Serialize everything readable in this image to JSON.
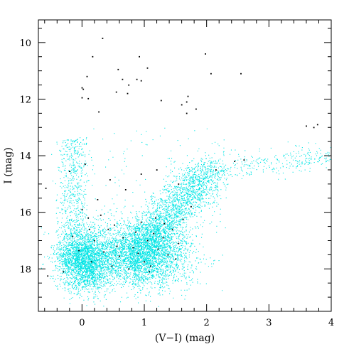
{
  "chart_data": {
    "type": "scatter",
    "xlabel": "(V−I) (mag)",
    "ylabel": "I (mag)",
    "xlim": [
      -0.7,
      4.0
    ],
    "ylim": [
      19.5,
      9.2
    ],
    "y_inverted": true,
    "grid": false,
    "xticks": [
      {
        "value": 0,
        "label": "0"
      },
      {
        "value": 1,
        "label": "1"
      },
      {
        "value": 2,
        "label": "2"
      },
      {
        "value": 3,
        "label": "3"
      },
      {
        "value": 4,
        "label": "4"
      }
    ],
    "yticks": [
      {
        "value": 10,
        "label": "10"
      },
      {
        "value": 12,
        "label": "12"
      },
      {
        "value": 14,
        "label": "14"
      },
      {
        "value": 16,
        "label": "16"
      },
      {
        "value": 18,
        "label": "18"
      }
    ],
    "series": [
      {
        "color": "#00e5e5",
        "approx_point_count": 9000,
        "description_regions": [
          {
            "color_range": [
              -0.4,
              1.9
            ],
            "mag_range": [
              16.3,
              18.9
            ],
            "density": "very high"
          },
          {
            "color_range": [
              0.8,
              1.8
            ],
            "mag_range": [
              15.2,
              17.5
            ],
            "density": "high"
          },
          {
            "color_range": [
              -0.3,
              0.3
            ],
            "mag_range": [
              13.2,
              18.5
            ],
            "density": "medium"
          },
          {
            "color_range": [
              1.5,
              4.0
            ],
            "mag_range": [
              13.7,
              15.5
            ],
            "density": "low"
          }
        ]
      },
      {
        "color": "#000000",
        "points": [
          [
            0.33,
            9.85
          ],
          [
            0.17,
            10.5
          ],
          [
            0.92,
            10.5
          ],
          [
            0.58,
            10.95
          ],
          [
            1.05,
            10.9
          ],
          [
            0.08,
            11.2
          ],
          [
            0.65,
            11.3
          ],
          [
            0.88,
            11.3
          ],
          [
            0.95,
            11.35
          ],
          [
            0.75,
            11.5
          ],
          [
            0.0,
            11.6
          ],
          [
            0.02,
            11.65
          ],
          [
            0.55,
            11.75
          ],
          [
            0.73,
            11.8
          ],
          [
            1.98,
            10.4
          ],
          [
            2.07,
            11.1
          ],
          [
            2.55,
            11.1
          ],
          [
            1.7,
            11.9
          ],
          [
            1.68,
            12.1
          ],
          [
            1.6,
            12.2
          ],
          [
            1.83,
            12.35
          ],
          [
            0.27,
            12.45
          ],
          [
            1.68,
            12.5
          ],
          [
            0.0,
            11.95
          ],
          [
            0.1,
            11.98
          ],
          [
            1.27,
            12.05
          ],
          [
            3.6,
            12.95
          ],
          [
            3.78,
            12.9
          ],
          [
            3.72,
            13.0
          ],
          [
            -0.58,
            15.15
          ],
          [
            -0.55,
            18.25
          ],
          [
            -0.3,
            18.1
          ],
          [
            -0.2,
            14.55
          ],
          [
            0.05,
            14.3
          ],
          [
            0.45,
            14.85
          ],
          [
            0.7,
            15.2
          ],
          [
            0.95,
            14.65
          ],
          [
            1.2,
            14.5
          ],
          [
            1.55,
            15.0
          ],
          [
            2.15,
            14.5
          ],
          [
            0.1,
            16.2
          ],
          [
            0.3,
            16.1
          ],
          [
            0.52,
            16.45
          ],
          [
            0.2,
            17.0
          ],
          [
            0.35,
            17.4
          ],
          [
            0.6,
            17.55
          ],
          [
            0.82,
            17.25
          ],
          [
            1.05,
            17.0
          ],
          [
            1.15,
            16.75
          ],
          [
            1.3,
            16.9
          ],
          [
            1.45,
            16.6
          ],
          [
            1.55,
            17.1
          ],
          [
            1.38,
            17.5
          ],
          [
            1.0,
            17.75
          ],
          [
            0.75,
            18.0
          ],
          [
            0.48,
            17.9
          ],
          [
            0.15,
            17.75
          ],
          [
            -0.05,
            17.35
          ],
          [
            -0.15,
            16.85
          ],
          [
            0.12,
            16.6
          ],
          [
            0.95,
            16.35
          ],
          [
            1.18,
            16.2
          ],
          [
            1.22,
            17.3
          ],
          [
            0.9,
            17.45
          ],
          [
            1.1,
            17.9
          ],
          [
            1.32,
            16.4
          ],
          [
            0.66,
            16.9
          ],
          [
            0.42,
            16.6
          ],
          [
            1.62,
            16.25
          ],
          [
            1.75,
            15.8
          ],
          [
            0.25,
            15.55
          ],
          [
            0.0,
            15.9
          ],
          [
            1.08,
            18.1
          ],
          [
            0.86,
            16.7
          ],
          [
            1.5,
            17.65
          ],
          [
            0.56,
            17.2
          ],
          [
            2.45,
            14.2
          ],
          [
            2.6,
            14.15
          ]
        ]
      }
    ]
  }
}
